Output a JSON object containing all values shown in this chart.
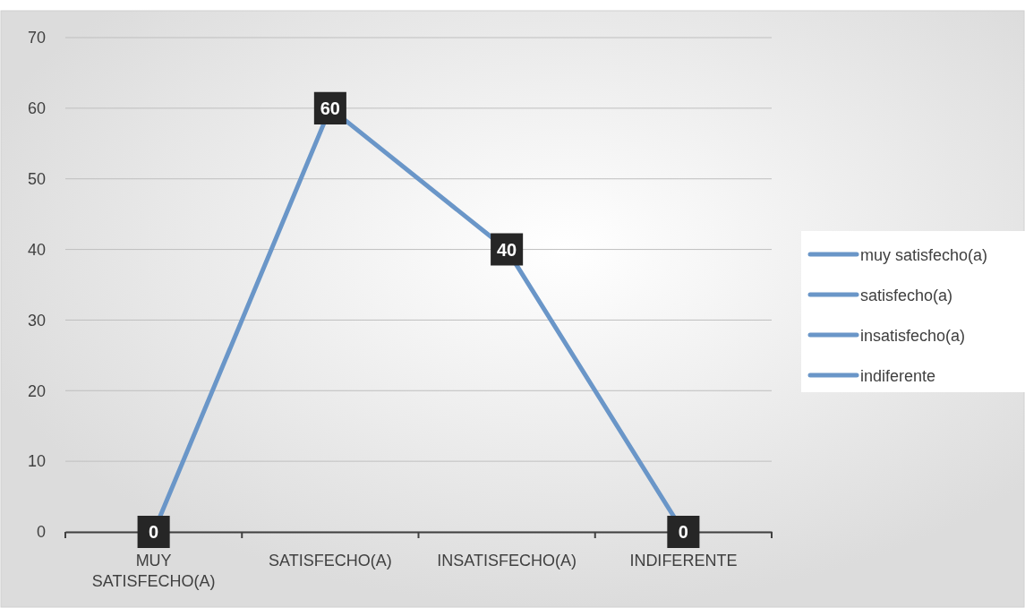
{
  "chart_data": {
    "type": "line",
    "categories": [
      "MUY SATISFECHO(A)",
      "SATISFECHO(A)",
      "INSATISFECHO(A)",
      "INDIFERENTE"
    ],
    "series": [
      {
        "color": "#6a96c8",
        "values": [
          0,
          60,
          40,
          0
        ]
      }
    ],
    "ylim": [
      0,
      70
    ],
    "yticks": [
      0,
      10,
      20,
      30,
      40,
      50,
      60,
      70
    ],
    "grid": "y",
    "data_labels": true,
    "marker": "square",
    "line_style": "solid",
    "annotations": [
      "muy satisfecho(a)",
      "satisfecho(a)",
      "insatisfecho(a)",
      "indiferente"
    ]
  }
}
